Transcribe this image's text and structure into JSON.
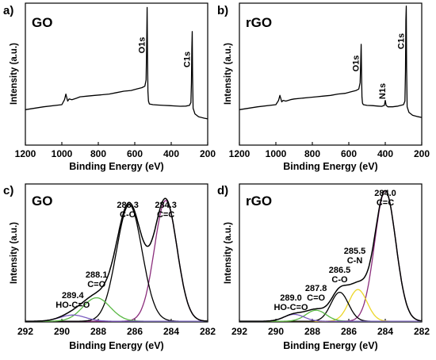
{
  "chart_data": [
    {
      "type": "line",
      "panel": "a)",
      "title": "GO",
      "xlabel": "Binding Energy (eV)",
      "ylabel": "Intensity (a.u.)",
      "xlim": [
        1200,
        200
      ],
      "xticks": [
        1200,
        1000,
        800,
        600,
        400,
        200
      ],
      "ylim": [
        0,
        100
      ],
      "series": [
        {
          "color": "#000000",
          "x": [
            1200,
            1100,
            1000,
            985,
            978,
            972,
            968,
            960,
            945,
            920,
            900,
            860,
            820,
            780,
            740,
            700,
            660,
            620,
            590,
            560,
            545,
            538,
            535,
            532,
            530,
            528,
            525,
            520,
            500,
            470,
            440,
            410,
            380,
            350,
            320,
            300,
            292,
            289,
            287,
            285,
            283,
            280,
            270,
            250,
            220,
            200
          ],
          "y": [
            25,
            27,
            28.5,
            32,
            36,
            33,
            31,
            32.5,
            32,
            33,
            34,
            34.5,
            35,
            35.5,
            36,
            37,
            38,
            38.5,
            39.5,
            40.5,
            41.5,
            46,
            70,
            97,
            62,
            38,
            31,
            29,
            28.5,
            28.2,
            28,
            27.8,
            27.6,
            27.4,
            27.5,
            28,
            30,
            44,
            68,
            80,
            50,
            26,
            22,
            20,
            19,
            18.5
          ]
        }
      ],
      "annotations": [
        {
          "text": "O1s",
          "x": 532
        },
        {
          "text": "C1s",
          "x": 285
        }
      ]
    },
    {
      "type": "line",
      "panel": "b)",
      "title": "rGO",
      "xlabel": "Binding Energy (eV)",
      "ylabel": "Intensity (a.u.)",
      "xlim": [
        1200,
        200
      ],
      "xticks": [
        1200,
        1000,
        800,
        600,
        400,
        200
      ],
      "ylim": [
        0,
        100
      ],
      "series": [
        {
          "color": "#000000",
          "x": [
            1200,
            1100,
            1000,
            985,
            978,
            972,
            968,
            960,
            945,
            920,
            900,
            860,
            820,
            780,
            740,
            700,
            660,
            620,
            590,
            560,
            545,
            538,
            535,
            532,
            530,
            528,
            525,
            520,
            500,
            470,
            440,
            420,
            405,
            400,
            395,
            385,
            360,
            330,
            300,
            292,
            289,
            287,
            285,
            283,
            280,
            270,
            250,
            220,
            200
          ],
          "y": [
            25,
            27,
            28.5,
            31.5,
            35,
            32.5,
            30.5,
            31.5,
            31,
            32,
            32.5,
            33,
            33.5,
            34,
            34.5,
            35,
            36,
            36.5,
            37.5,
            38.5,
            39.5,
            44,
            58,
            71,
            50,
            34,
            29.5,
            28.5,
            28,
            27.8,
            27.5,
            27.3,
            28,
            31.5,
            28,
            27,
            27,
            27.5,
            28.5,
            31,
            52,
            88,
            98,
            55,
            27,
            23,
            21,
            20,
            19.5
          ]
        }
      ],
      "annotations": [
        {
          "text": "O1s",
          "x": 532
        },
        {
          "text": "N1s",
          "x": 400
        },
        {
          "text": "C1s",
          "x": 285
        }
      ]
    },
    {
      "type": "line",
      "panel": "c)",
      "title": "GO",
      "xlabel": "Binding Energy (eV)",
      "ylabel": "Intensity (a.u.)",
      "xlim": [
        292,
        282
      ],
      "xticks": [
        292,
        290,
        288,
        286,
        284,
        282
      ],
      "ylim": [
        0,
        100
      ],
      "baseline": 0.5,
      "components": [
        {
          "center": 284.3,
          "height": 87.5,
          "sigma": 0.62,
          "color": "#8b2d7c"
        },
        {
          "center": 286.3,
          "height": 84.5,
          "sigma": 0.7,
          "color": "#000000"
        },
        {
          "center": 288.1,
          "height": 17,
          "sigma": 0.75,
          "color": "#5ab845"
        },
        {
          "center": 289.4,
          "height": 4.5,
          "sigma": 0.7,
          "color": "#7a5cc0"
        }
      ],
      "envelope_color": "#000000",
      "annotations": [
        {
          "text": "284.3",
          "sub": "C=C",
          "x": 284.3
        },
        {
          "text": "286.3",
          "sub": "C-O",
          "x": 286.3
        },
        {
          "text": "288.1",
          "sub": "C=O",
          "x": 288.1
        },
        {
          "text": "289.4",
          "sub": "HO-C=O",
          "x": 289.4
        }
      ]
    },
    {
      "type": "line",
      "panel": "d)",
      "title": "rGO",
      "xlabel": "Binding Energy (eV)",
      "ylabel": "Intensity (a.u.)",
      "xlim": [
        292,
        282
      ],
      "xticks": [
        292,
        290,
        288,
        286,
        284,
        282
      ],
      "ylim": [
        0,
        100
      ],
      "baseline": 0.5,
      "components": [
        {
          "center": 284.0,
          "height": 94.5,
          "sigma": 0.58,
          "color": "#8b2d7c"
        },
        {
          "center": 285.5,
          "height": 23,
          "sigma": 0.5,
          "color": "#ecd628"
        },
        {
          "center": 286.5,
          "height": 21,
          "sigma": 0.48,
          "color": "#000000"
        },
        {
          "center": 287.8,
          "height": 8,
          "sigma": 0.55,
          "color": "#5ab845"
        },
        {
          "center": 289.0,
          "height": 5,
          "sigma": 0.55,
          "color": "#7a5cc0"
        }
      ],
      "envelope_color": "#000000",
      "annotations": [
        {
          "text": "284.0",
          "sub": "C=C",
          "x": 284.0
        },
        {
          "text": "285.5",
          "sub": "C-N",
          "x": 285.5
        },
        {
          "text": "286.5",
          "sub": "C-O",
          "x": 286.5
        },
        {
          "text": "287.8",
          "sub": "C=O",
          "x": 287.8
        },
        {
          "text": "289.0",
          "sub": "HO-C=O",
          "x": 289.0
        }
      ]
    }
  ]
}
